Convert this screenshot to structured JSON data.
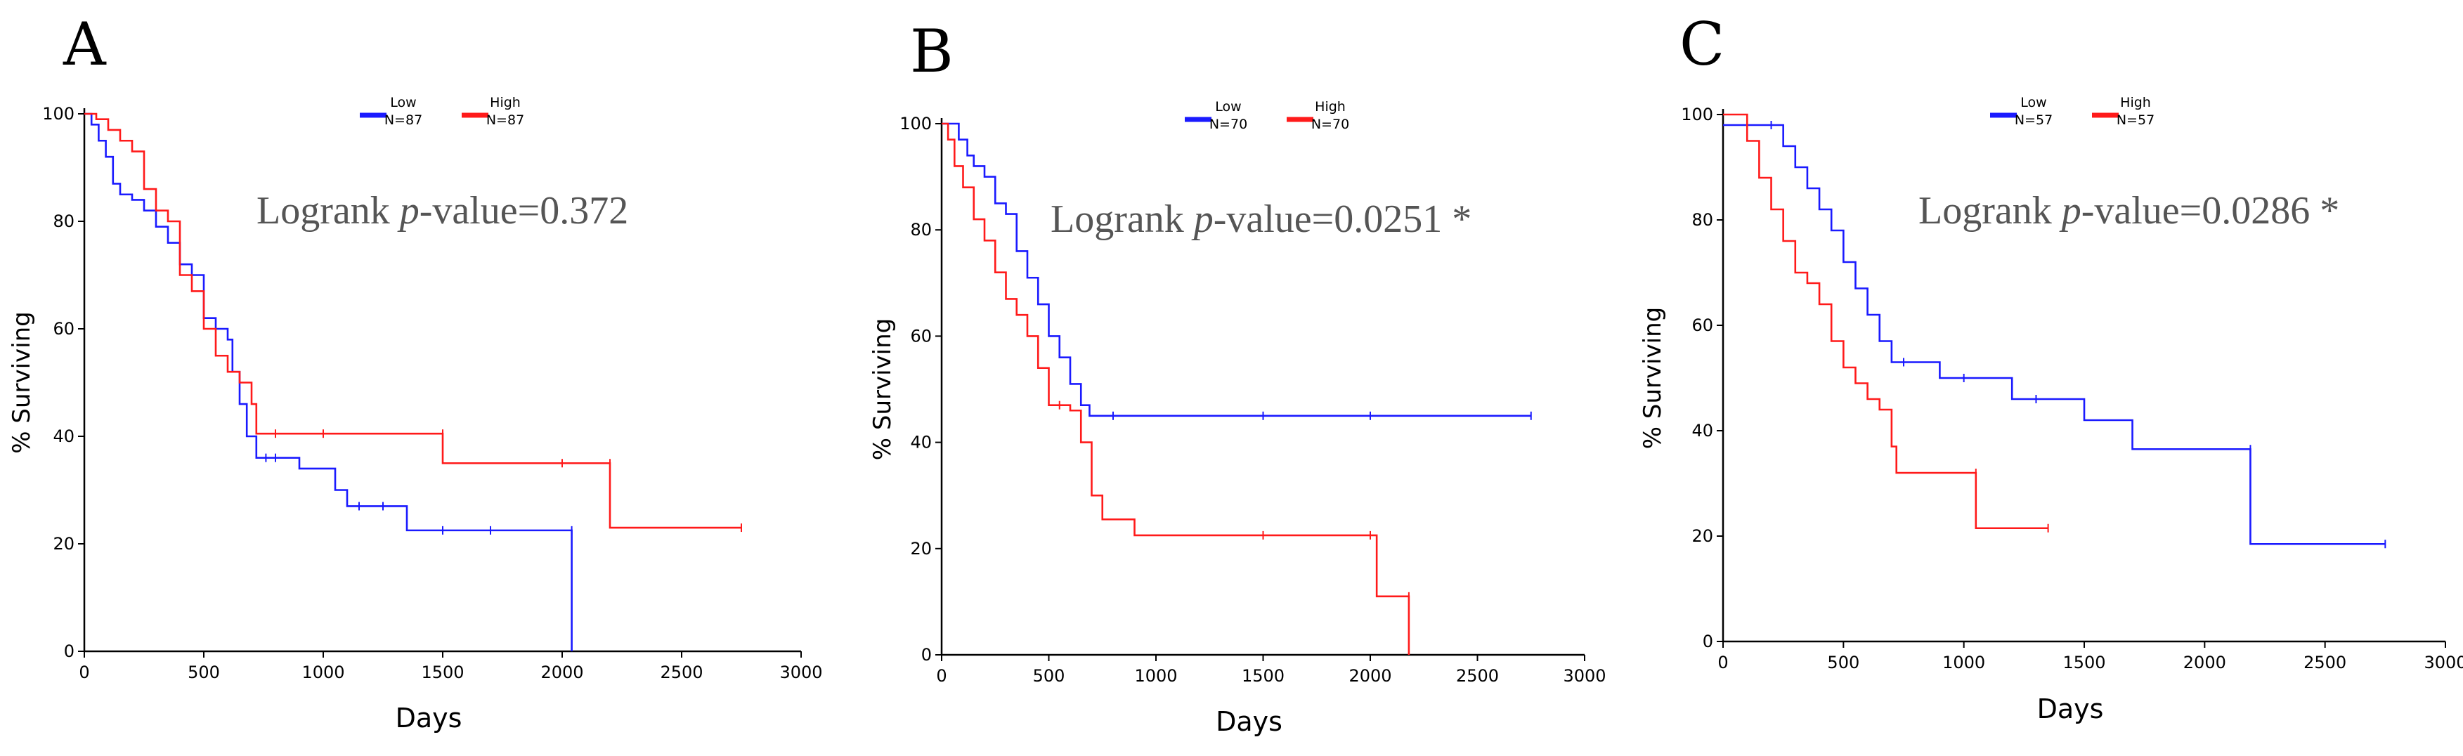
{
  "colors": {
    "low": "#1a1aff",
    "high": "#ff1a1a",
    "axis": "#000000",
    "pvalue_text": "#555555"
  },
  "chart_data": [
    {
      "type": "line",
      "panel_label": "A",
      "xlabel": "Days",
      "ylabel": "% Surviving",
      "xlim": [
        0,
        3000
      ],
      "ylim": [
        0,
        100
      ],
      "xticks": [
        "0",
        "500",
        "1000",
        "1500",
        "2000",
        "2500",
        "3000"
      ],
      "yticks": [
        "0",
        "20",
        "40",
        "60",
        "80",
        "100"
      ],
      "annotation": {
        "prefix": "Logrank ",
        "italic": "p",
        "suffix": "-value=0.372"
      },
      "series": [
        {
          "name": "Low",
          "n_label": "N=87",
          "color_key": "low",
          "x": [
            0,
            30,
            60,
            90,
            120,
            150,
            200,
            250,
            300,
            350,
            400,
            450,
            500,
            550,
            600,
            620,
            650,
            680,
            720,
            760,
            800,
            900,
            1050,
            1100,
            1150,
            1250,
            1350,
            1500,
            1700,
            2040,
            2040
          ],
          "y": [
            100,
            98,
            95,
            92,
            87,
            85,
            84,
            82,
            79,
            76,
            72,
            70,
            62,
            60,
            58,
            52,
            46,
            40,
            36,
            36,
            36,
            34,
            30,
            27,
            27,
            27,
            22.5,
            22.5,
            22.5,
            22.5,
            0
          ]
        },
        {
          "name": "High",
          "n_label": "N=87",
          "color_key": "high",
          "x": [
            0,
            50,
            100,
            150,
            200,
            250,
            300,
            350,
            400,
            450,
            500,
            550,
            600,
            650,
            700,
            720,
            800,
            1000,
            1500,
            1500,
            2000,
            2200,
            2200,
            2750
          ],
          "y": [
            100,
            99,
            97,
            95,
            93,
            86,
            82,
            80,
            70,
            67,
            60,
            55,
            52,
            50,
            46,
            40.5,
            40.5,
            40.5,
            40.5,
            35,
            35,
            35,
            23,
            23
          ]
        }
      ]
    },
    {
      "type": "line",
      "panel_label": "B",
      "xlabel": "Days",
      "ylabel": "% Surviving",
      "xlim": [
        0,
        3000
      ],
      "ylim": [
        0,
        100
      ],
      "xticks": [
        "0",
        "500",
        "1000",
        "1500",
        "2000",
        "2500",
        "3000"
      ],
      "yticks": [
        "0",
        "20",
        "40",
        "60",
        "80",
        "100"
      ],
      "annotation": {
        "prefix": "Logrank ",
        "italic": "p",
        "suffix": "-value=0.0251 *"
      },
      "series": [
        {
          "name": "Low",
          "n_label": "N=70",
          "color_key": "low",
          "x": [
            0,
            80,
            120,
            150,
            200,
            250,
            300,
            350,
            400,
            450,
            500,
            550,
            600,
            650,
            690,
            800,
            1500,
            2000,
            2750
          ],
          "y": [
            100,
            97,
            94,
            92,
            90,
            85,
            83,
            76,
            71,
            66,
            60,
            56,
            51,
            47,
            45,
            45,
            45,
            45,
            45
          ]
        },
        {
          "name": "High",
          "n_label": "N=70",
          "color_key": "high",
          "x": [
            0,
            30,
            60,
            100,
            150,
            200,
            250,
            300,
            350,
            400,
            450,
            500,
            550,
            600,
            650,
            700,
            750,
            900,
            1500,
            2000,
            2030,
            2180,
            2180
          ],
          "y": [
            100,
            97,
            92,
            88,
            82,
            78,
            72,
            67,
            64,
            60,
            54,
            47,
            47,
            46,
            40,
            30,
            25.5,
            22.5,
            22.5,
            22.5,
            11,
            11,
            0
          ]
        }
      ]
    },
    {
      "type": "line",
      "panel_label": "C",
      "xlabel": "Days",
      "ylabel": "% Surviving",
      "xlim": [
        0,
        3000
      ],
      "ylim": [
        0,
        100
      ],
      "xticks": [
        "0",
        "500",
        "1000",
        "1500",
        "2000",
        "2500",
        "3000"
      ],
      "yticks": [
        "0",
        "20",
        "40",
        "60",
        "80",
        "100"
      ],
      "annotation": {
        "prefix": "Logrank ",
        "italic": "p",
        "suffix": "-value=0.0286 *"
      },
      "series": [
        {
          "name": "Low",
          "n_label": "N=57",
          "color_key": "low",
          "x": [
            0,
            200,
            250,
            300,
            350,
            400,
            450,
            500,
            550,
            600,
            650,
            700,
            750,
            900,
            1000,
            1200,
            1300,
            1500,
            1700,
            2190,
            2190,
            2750
          ],
          "y": [
            98,
            98,
            94,
            90,
            86,
            82,
            78,
            72,
            67,
            62,
            57,
            53,
            53,
            50,
            50,
            46,
            46,
            42,
            36.5,
            36.5,
            18.5,
            18.5
          ]
        },
        {
          "name": "High",
          "n_label": "N=57",
          "color_key": "high",
          "x": [
            0,
            100,
            150,
            200,
            250,
            300,
            350,
            400,
            450,
            500,
            550,
            600,
            650,
            700,
            720,
            1050,
            1050,
            1350
          ],
          "y": [
            100,
            95,
            88,
            82,
            76,
            70,
            68,
            64,
            57,
            52,
            49,
            46,
            44,
            37,
            32,
            32,
            21.5,
            21.5
          ]
        }
      ]
    }
  ]
}
